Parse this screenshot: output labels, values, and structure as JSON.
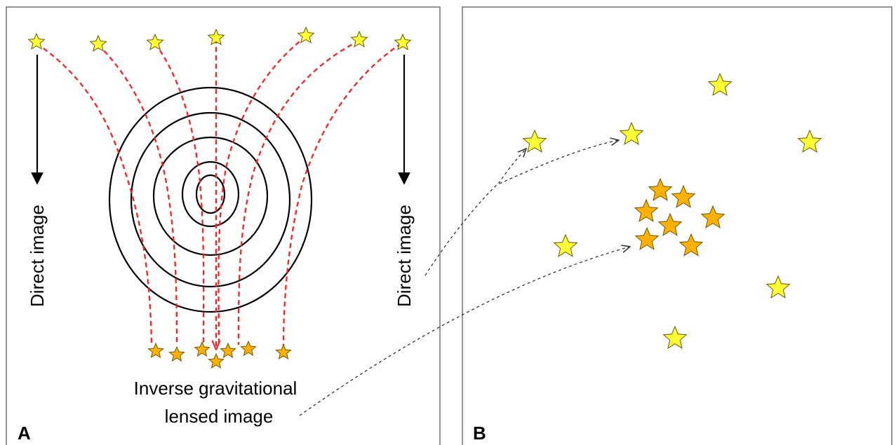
{
  "panel_a": {
    "label": "A",
    "left_caption": "Direct image",
    "right_caption": "Direct image",
    "bottom_caption_line1": "Inverse gravitational",
    "bottom_caption_line2": "lensed image"
  },
  "panel_b": {
    "label": "B"
  },
  "colors": {
    "source_star": "#ffff33",
    "lensed_star": "#ffb000",
    "ray": "#ff2020",
    "contour": "#000000",
    "pointer": "#333333"
  },
  "icons": {
    "source_star": "star-icon",
    "lensed_star": "star-icon"
  }
}
